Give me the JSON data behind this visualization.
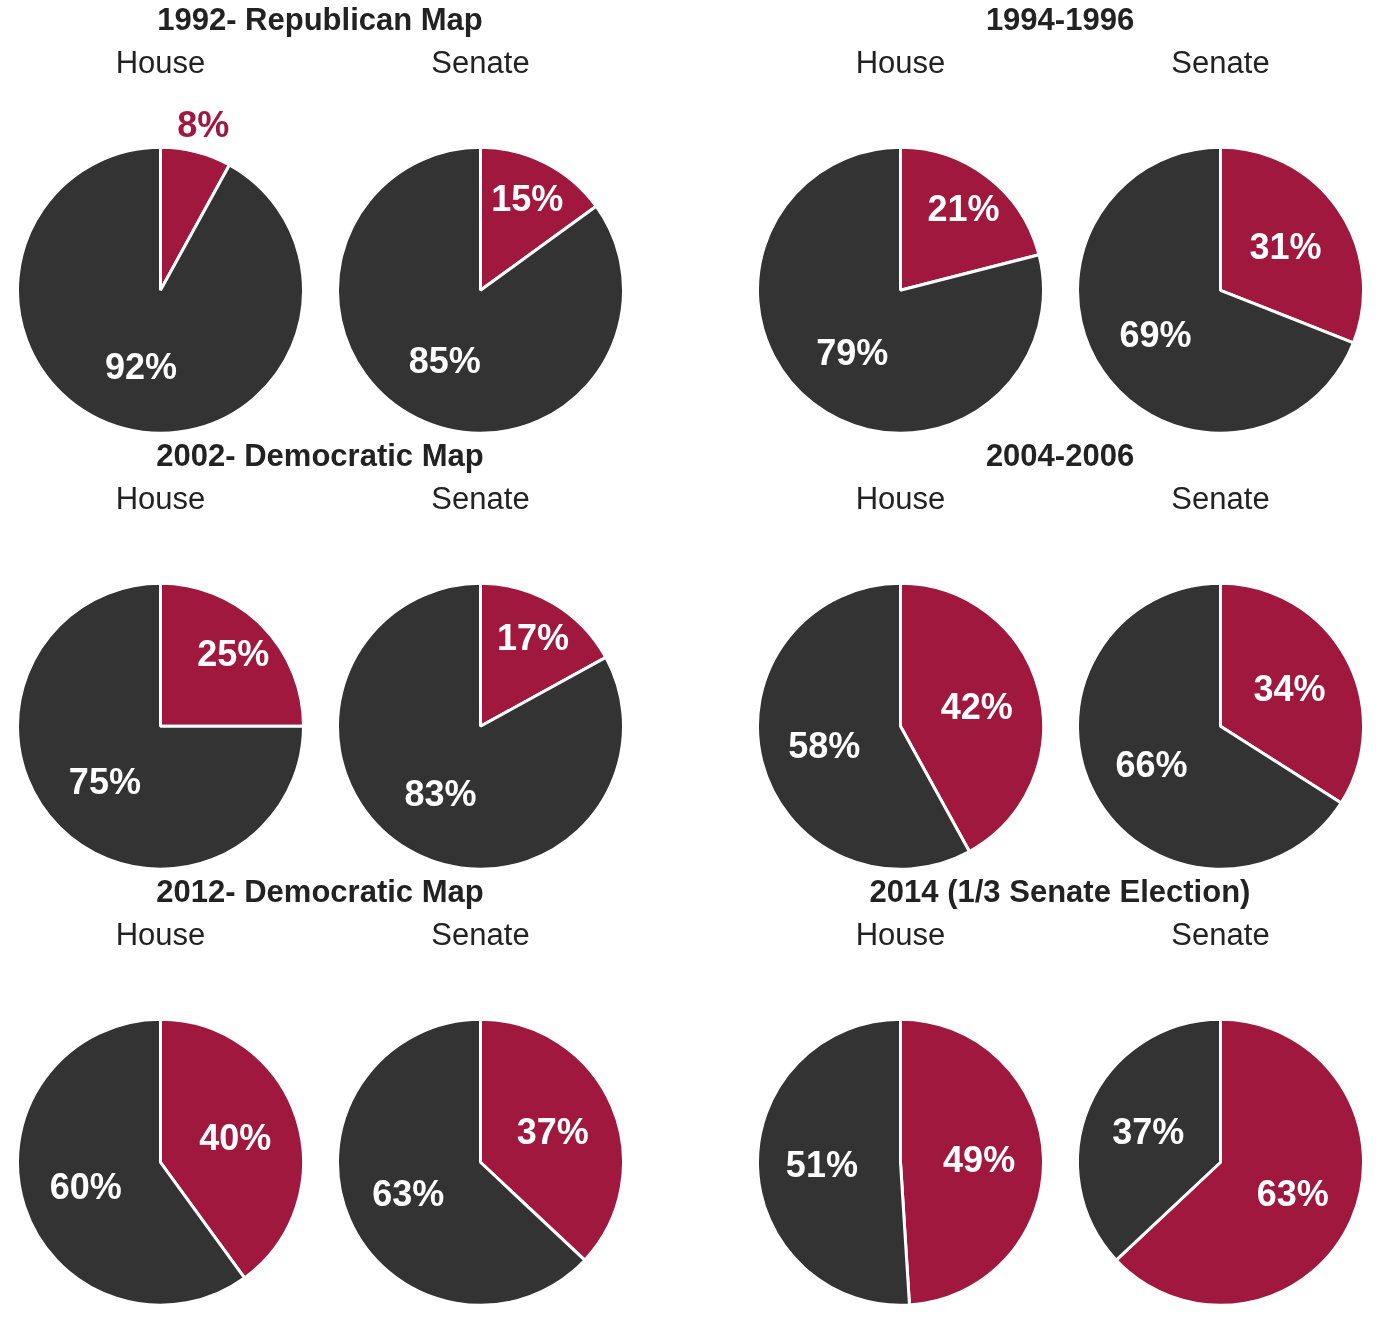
{
  "chart_data": [
    {
      "type": "pie",
      "title": "1992- Republican Map",
      "subtitle": "House",
      "categories": [
        null,
        null
      ],
      "values": [
        8,
        92
      ],
      "colors": [
        "#a0183e",
        "#333333"
      ],
      "value_labels": [
        "8%",
        "92%"
      ]
    },
    {
      "type": "pie",
      "subtitle": "Senate",
      "categories": [
        null,
        null
      ],
      "values": [
        15,
        85
      ],
      "colors": [
        "#a0183e",
        "#333333"
      ],
      "value_labels": [
        "15%",
        "85%"
      ]
    },
    {
      "type": "pie",
      "title": "1994-1996",
      "subtitle": "House",
      "categories": [
        null,
        null
      ],
      "values": [
        21,
        79
      ],
      "colors": [
        "#a0183e",
        "#333333"
      ],
      "value_labels": [
        "21%",
        "79%"
      ]
    },
    {
      "type": "pie",
      "subtitle": "Senate",
      "categories": [
        null,
        null
      ],
      "values": [
        31,
        69
      ],
      "colors": [
        "#a0183e",
        "#333333"
      ],
      "value_labels": [
        "31%",
        "69%"
      ]
    },
    {
      "type": "pie",
      "title": "2002- Democratic Map",
      "subtitle": "House",
      "categories": [
        null,
        null
      ],
      "values": [
        25,
        75
      ],
      "colors": [
        "#a0183e",
        "#333333"
      ],
      "value_labels": [
        "25%",
        "75%"
      ]
    },
    {
      "type": "pie",
      "subtitle": "Senate",
      "categories": [
        null,
        null
      ],
      "values": [
        17,
        83
      ],
      "colors": [
        "#a0183e",
        "#333333"
      ],
      "value_labels": [
        "17%",
        "83%"
      ]
    },
    {
      "type": "pie",
      "title": "2004-2006",
      "subtitle": "House",
      "categories": [
        null,
        null
      ],
      "values": [
        42,
        58
      ],
      "colors": [
        "#a0183e",
        "#333333"
      ],
      "value_labels": [
        "42%",
        "58%"
      ]
    },
    {
      "type": "pie",
      "subtitle": "Senate",
      "categories": [
        null,
        null
      ],
      "values": [
        34,
        66
      ],
      "colors": [
        "#a0183e",
        "#333333"
      ],
      "value_labels": [
        "34%",
        "66%"
      ]
    },
    {
      "type": "pie",
      "title": "2012- Democratic Map",
      "subtitle": "House",
      "categories": [
        null,
        null
      ],
      "values": [
        40,
        60
      ],
      "colors": [
        "#a0183e",
        "#333333"
      ],
      "value_labels": [
        "40%",
        "60%"
      ]
    },
    {
      "type": "pie",
      "subtitle": "Senate",
      "categories": [
        null,
        null
      ],
      "values": [
        37,
        63
      ],
      "colors": [
        "#a0183e",
        "#333333"
      ],
      "value_labels": [
        "37%",
        "63%"
      ]
    },
    {
      "type": "pie",
      "title": "2014 (1/3 Senate Election)",
      "subtitle": "House",
      "categories": [
        null,
        null
      ],
      "values": [
        49,
        51
      ],
      "colors": [
        "#a0183e",
        "#333333"
      ],
      "value_labels": [
        "49%",
        "51%"
      ]
    },
    {
      "type": "pie",
      "subtitle": "Senate",
      "categories": [
        null,
        null
      ],
      "values": [
        63,
        37
      ],
      "colors": [
        "#a0183e",
        "#333333"
      ],
      "value_labels": [
        "63%",
        "37%"
      ]
    }
  ]
}
